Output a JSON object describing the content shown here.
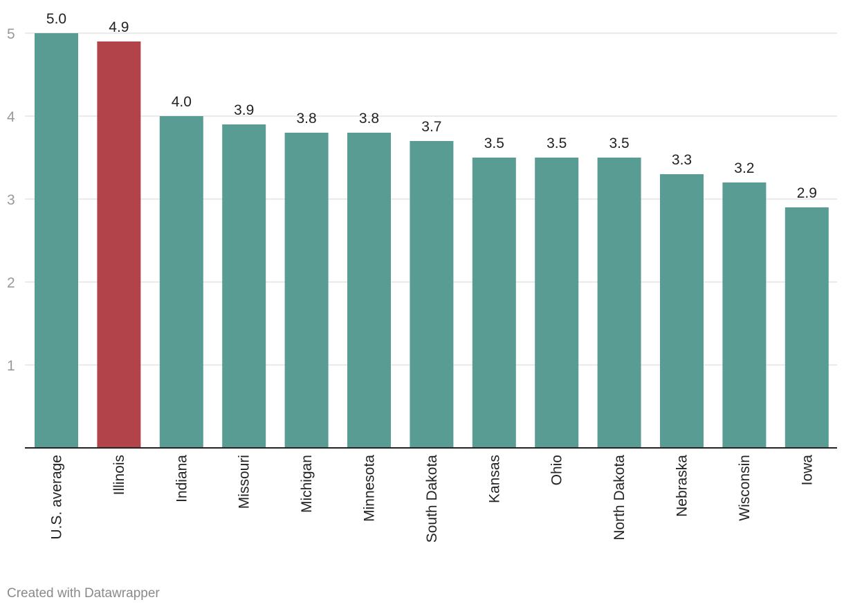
{
  "chart_data": {
    "type": "bar",
    "categories": [
      "U.S. average",
      "Illinois",
      "Indiana",
      "Missouri",
      "Michigan",
      "Minnesota",
      "South Dakota",
      "Kansas",
      "Ohio",
      "North Dakota",
      "Nebraska",
      "Wisconsin",
      "Iowa"
    ],
    "values": [
      5.0,
      4.9,
      4.0,
      3.9,
      3.8,
      3.8,
      3.7,
      3.5,
      3.5,
      3.5,
      3.3,
      3.2,
      2.9
    ],
    "value_labels": [
      "5.0",
      "4.9",
      "4.0",
      "3.9",
      "3.8",
      "3.8",
      "3.7",
      "3.5",
      "3.5",
      "3.5",
      "3.3",
      "3.2",
      "2.9"
    ],
    "ylim": [
      0,
      5
    ],
    "yticks": [
      "1",
      "2",
      "3",
      "4",
      "5"
    ],
    "grid": true,
    "colors": {
      "default": "#589c93",
      "highlight": "#b3434a"
    },
    "highlight_category": "Illinois"
  },
  "footer": {
    "credit": "Created with Datawrapper"
  }
}
